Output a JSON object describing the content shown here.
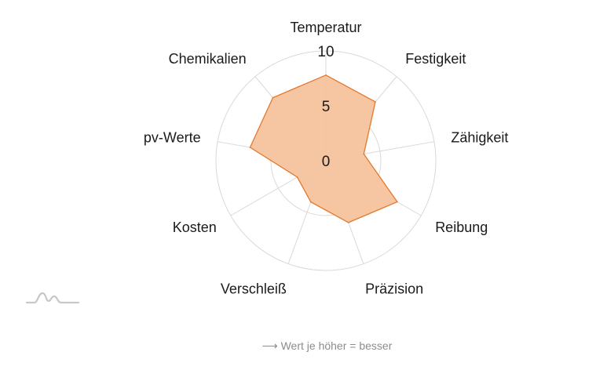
{
  "chart_data": {
    "type": "radar",
    "categories": [
      "Temperatur",
      "Festigkeit",
      "Zähigkeit",
      "Reibung",
      "Präzision",
      "Verschleiß",
      "Kosten",
      "pv-Werte",
      "Chemikalien"
    ],
    "values": [
      7.8,
      7.0,
      3.5,
      7.5,
      6.0,
      4.0,
      3.0,
      7.0,
      7.5
    ],
    "rlim": [
      0,
      10
    ],
    "ticks": [
      "0",
      "5",
      "10"
    ],
    "grid": true,
    "colors": {
      "fill": "#f4c39c",
      "stroke": "#e4782e",
      "grid": "#d9d9d9"
    }
  },
  "footnote": "⟶ Wert je höher = besser",
  "logo": {
    "icon": "mountain-logo-icon",
    "color": "#c8c8c8"
  }
}
